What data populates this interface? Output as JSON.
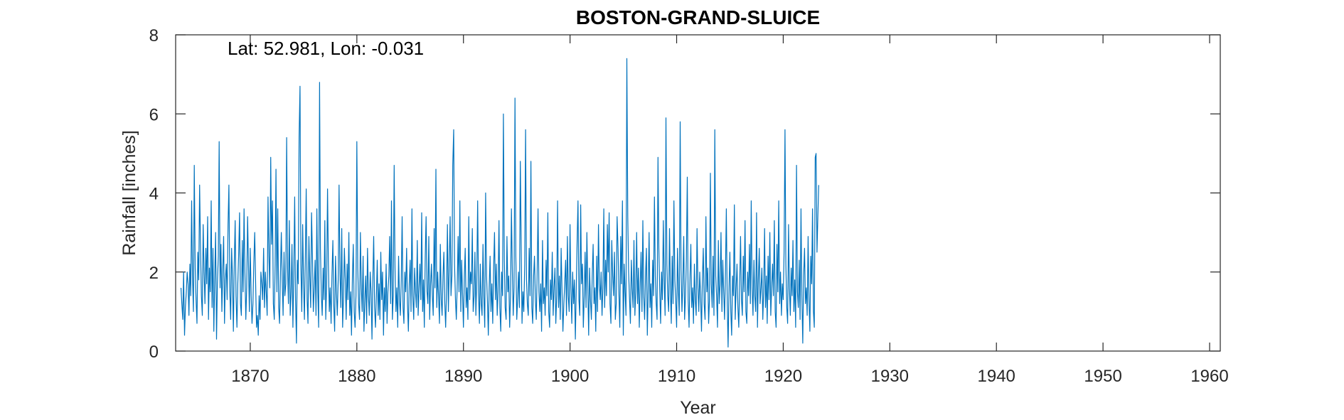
{
  "chart_data": {
    "type": "line",
    "title": "BOSTON-GRAND-SLUICE",
    "xlabel": "Year",
    "ylabel": "Rainfall [inches]",
    "annotation": "Lat: 52.981, Lon: -0.031",
    "xlim": [
      1863,
      1961
    ],
    "ylim": [
      0,
      8
    ],
    "xticks": [
      1870,
      1880,
      1890,
      1900,
      1910,
      1920,
      1930,
      1940,
      1950,
      1960
    ],
    "yticks": [
      0,
      2,
      4,
      6,
      8
    ],
    "grid": false,
    "line_color": "#0072BD",
    "series": [
      {
        "start": 1863.5,
        "step": 0.08333,
        "values": [
          1.6,
          1.2,
          0.8,
          2.0,
          0.4,
          1.1,
          1.5,
          2.0,
          1.7,
          0.9,
          2.2,
          1.4,
          3.8,
          1.9,
          1.0,
          4.7,
          2.1,
          1.3,
          0.7,
          2.5,
          1.8,
          4.2,
          2.6,
          1.4,
          0.9,
          3.2,
          2.0,
          1.2,
          2.6,
          1.7,
          3.4,
          0.8,
          2.1,
          1.5,
          3.8,
          1.1,
          2.6,
          0.5,
          1.9,
          3.0,
          0.3,
          1.7,
          2.4,
          5.3,
          1.6,
          2.7,
          1.0,
          2.0,
          2.9,
          0.7,
          1.8,
          2.2,
          1.3,
          3.2,
          4.2,
          1.5,
          0.8,
          2.6,
          1.9,
          0.5,
          2.2,
          3.3,
          1.4,
          0.6,
          1.7,
          2.5,
          3.5,
          1.2,
          0.9,
          2.8,
          1.5,
          3.6,
          2.0,
          0.8,
          1.6,
          3.4,
          2.2,
          1.0,
          2.6,
          1.4,
          0.7,
          1.2,
          2.2,
          3.0,
          1.8,
          0.6,
          0.9,
          0.4,
          1.4,
          0.8,
          2.0,
          1.7,
          1.3,
          2.6,
          1.1,
          2.0,
          1.5,
          0.9,
          3.9,
          2.4,
          1.6,
          4.9,
          2.7,
          3.8,
          1.2,
          0.8,
          2.2,
          4.6,
          1.5,
          3.6,
          1.1,
          0.7,
          2.0,
          3.0,
          1.8,
          0.9,
          2.5,
          1.4,
          1.7,
          5.4,
          2.1,
          1.2,
          3.3,
          0.9,
          1.5,
          2.7,
          0.6,
          1.9,
          3.9,
          1.3,
          0.2,
          2.3,
          1.7,
          5.4,
          6.7,
          2.2,
          1.0,
          3.2,
          1.7,
          0.8,
          2.4,
          4.1,
          1.3,
          0.7,
          2.9,
          1.9,
          1.1,
          3.5,
          2.4,
          1.0,
          1.6,
          2.3,
          0.9,
          3.6,
          1.5,
          0.6,
          6.8,
          2.6,
          1.4,
          0.9,
          2.1,
          1.3,
          3.3,
          0.8,
          1.7,
          4.1,
          2.2,
          1.0,
          1.6,
          0.7,
          1.9,
          2.8,
          1.2,
          0.5,
          2.4,
          1.5,
          0.9,
          1.8,
          4.2,
          2.0,
          1.1,
          3.1,
          0.6,
          1.4,
          2.6,
          1.8,
          0.8,
          2.2,
          1.3,
          3.0,
          0.9,
          1.5,
          0.4,
          1.9,
          2.7,
          1.0,
          0.6,
          1.4,
          5.3,
          2.1,
          1.2,
          0.8,
          3.0,
          1.6,
          1.0,
          2.4,
          0.5,
          1.3,
          1.9,
          0.7,
          2.6,
          1.4,
          0.9,
          2.0,
          1.5,
          0.3,
          1.8,
          2.9,
          1.1,
          0.6,
          1.4,
          2.3,
          0.9,
          1.7,
          0.8,
          2.5,
          1.3,
          2.0,
          0.4,
          1.6,
          1.0,
          2.2,
          0.7,
          1.5,
          1.9,
          2.9,
          1.2,
          3.8,
          0.8,
          1.4,
          4.7,
          2.1,
          1.0,
          1.6,
          0.6,
          2.4,
          1.3,
          0.9,
          1.8,
          3.4,
          1.1,
          0.7,
          2.0,
          1.5,
          2.6,
          1.2,
          0.5,
          1.7,
          2.3,
          1.0,
          3.6,
          1.4,
          0.8,
          2.1,
          1.5,
          1.1,
          2.8,
          0.9,
          1.6,
          2.2,
          1.3,
          3.5,
          1.0,
          1.8,
          0.6,
          2.4,
          3.4,
          1.5,
          1.2,
          2.9,
          0.8,
          1.7,
          2.2,
          1.4,
          0.9,
          3.1,
          1.6,
          4.6,
          1.1,
          2.0,
          1.4,
          0.7,
          2.7,
          1.3,
          0.9,
          1.9,
          2.5,
          1.2,
          0.6,
          1.6,
          3.2,
          1.0,
          2.1,
          3.4,
          1.4,
          1.9,
          4.7,
          5.6,
          2.2,
          1.3,
          0.8,
          1.7,
          2.9,
          1.5,
          3.8,
          1.0,
          2.3,
          1.4,
          0.6,
          1.9,
          2.6,
          1.1,
          1.6,
          0.8,
          3.4,
          1.3,
          2.0,
          1.7,
          3.1,
          1.0,
          1.4,
          2.5,
          0.9,
          1.8,
          3.8,
          1.5,
          0.7,
          2.2,
          1.2,
          0.9,
          2.7,
          1.4,
          0.6,
          4.0,
          1.9,
          1.3,
          0.4,
          1.6,
          2.4,
          1.0,
          1.7,
          0.7,
          2.1,
          3.0,
          1.3,
          2.2,
          0.9,
          1.5,
          3.3,
          1.1,
          0.5,
          2.0,
          1.4,
          6.0,
          2.3,
          1.1,
          0.8,
          2.9,
          1.5,
          1.9,
          0.6,
          1.4,
          3.6,
          2.1,
          0.9,
          1.6,
          6.4,
          2.4,
          0.8,
          1.3,
          2.0,
          1.1,
          4.8,
          2.7,
          0.7,
          1.5,
          1.0,
          2.2,
          5.6,
          1.8,
          1.2,
          0.9,
          2.6,
          1.4,
          4.8,
          1.1,
          0.7,
          1.9,
          2.4,
          1.3,
          0.8,
          2.0,
          3.6,
          1.5,
          1.0,
          1.7,
          0.5,
          2.8,
          1.2,
          1.6,
          0.9,
          2.3,
          1.4,
          3.5,
          1.0,
          0.6,
          1.8,
          1.3,
          2.5,
          0.9,
          1.6,
          2.1,
          0.7,
          1.4,
          3.8,
          1.1,
          1.9,
          0.8,
          2.6,
          1.5,
          0.5,
          1.2,
          1.7,
          2.3,
          0.9,
          2.9,
          1.4,
          1.0,
          3.2,
          1.6,
          0.7,
          2.0,
          1.2,
          1.8,
          0.3,
          1.5,
          2.8,
          3.8,
          1.3,
          0.9,
          3.7,
          1.7,
          2.2,
          0.6,
          1.4,
          2.5,
          1.1,
          3.0,
          1.6,
          0.4,
          2.1,
          1.3,
          0.8,
          1.9,
          2.7,
          1.2,
          1.6,
          0.5,
          2.4,
          1.0,
          3.2,
          1.7,
          1.3,
          2.0,
          0.9,
          1.6,
          3.6,
          1.1,
          2.3,
          1.4,
          3.2,
          2.0,
          3.5,
          1.2,
          0.7,
          2.8,
          1.9,
          1.4,
          2.5,
          0.8,
          1.2,
          3.4,
          2.6,
          1.5,
          0.6,
          2.9,
          1.7,
          3.8,
          0.4,
          2.2,
          1.5,
          0.9,
          7.4,
          3.4,
          2.0,
          1.3,
          0.7,
          2.3,
          1.6,
          1.1,
          2.8,
          0.9,
          1.5,
          3.0,
          1.2,
          2.1,
          0.6,
          1.7,
          2.5,
          1.0,
          3.3,
          1.4,
          0.8,
          1.9,
          2.6,
          0.4,
          1.5,
          3.0,
          1.1,
          1.7,
          0.6,
          2.3,
          1.4,
          3.9,
          1.9,
          1.2,
          0.8,
          4.9,
          2.6,
          1.5,
          0.7,
          2.0,
          1.3,
          3.3,
          1.8,
          0.9,
          5.9,
          2.2,
          1.4,
          1.0,
          3.1,
          1.6,
          0.7,
          2.4,
          1.2,
          3.8,
          1.8,
          1.3,
          0.6,
          2.6,
          1.5,
          0.9,
          5.8,
          2.1,
          1.0,
          1.7,
          2.9,
          0.8,
          1.4,
          2.3,
          4.4,
          1.3,
          0.6,
          1.8,
          2.7,
          1.1,
          1.6,
          0.7,
          2.2,
          1.3,
          0.9,
          3.1,
          1.6,
          1.0,
          2.0,
          1.4,
          0.5,
          1.8,
          2.6,
          1.2,
          0.8,
          3.4,
          1.5,
          2.1,
          0.7,
          1.3,
          4.5,
          1.7,
          1.1,
          2.4,
          0.9,
          5.6,
          1.9,
          1.4,
          0.6,
          2.8,
          1.2,
          1.7,
          3.0,
          1.0,
          2.3,
          1.5,
          0.8,
          2.0,
          3.6,
          1.2,
          0.1,
          1.6,
          2.5,
          1.0,
          0.4,
          1.9,
          1.4,
          3.7,
          0.8,
          1.6,
          2.2,
          1.1,
          0.6,
          1.7,
          2.9,
          1.3,
          0.9,
          2.4,
          1.5,
          3.3,
          1.0,
          0.7,
          2.0,
          1.4,
          2.7,
          1.2,
          3.8,
          1.6,
          0.9,
          2.3,
          1.4,
          1.0,
          3.5,
          0.6,
          1.8,
          2.6,
          1.2,
          1.6,
          2.1,
          0.8,
          1.5,
          3.1,
          1.1,
          1.9,
          0.7,
          2.4,
          1.3,
          3.0,
          0.9,
          1.6,
          2.2,
          1.4,
          3.3,
          1.0,
          0.6,
          2.7,
          1.5,
          3.8,
          1.2,
          2.0,
          0.9,
          1.7,
          1.3,
          2.5,
          5.6,
          2.2,
          1.1,
          0.7,
          3.2,
          1.6,
          0.9,
          2.1,
          1.4,
          2.8,
          1.0,
          1.8,
          0.6,
          4.7,
          1.5,
          1.1,
          2.3,
          0.8,
          3.6,
          1.4,
          0.2,
          1.9,
          2.6,
          1.2,
          1.6,
          0.9,
          2.9,
          1.3,
          0.5,
          2.4,
          1.7,
          3.6,
          1.0,
          0.6,
          4.9,
          5.0,
          2.5,
          3.4,
          4.2
        ]
      }
    ]
  }
}
